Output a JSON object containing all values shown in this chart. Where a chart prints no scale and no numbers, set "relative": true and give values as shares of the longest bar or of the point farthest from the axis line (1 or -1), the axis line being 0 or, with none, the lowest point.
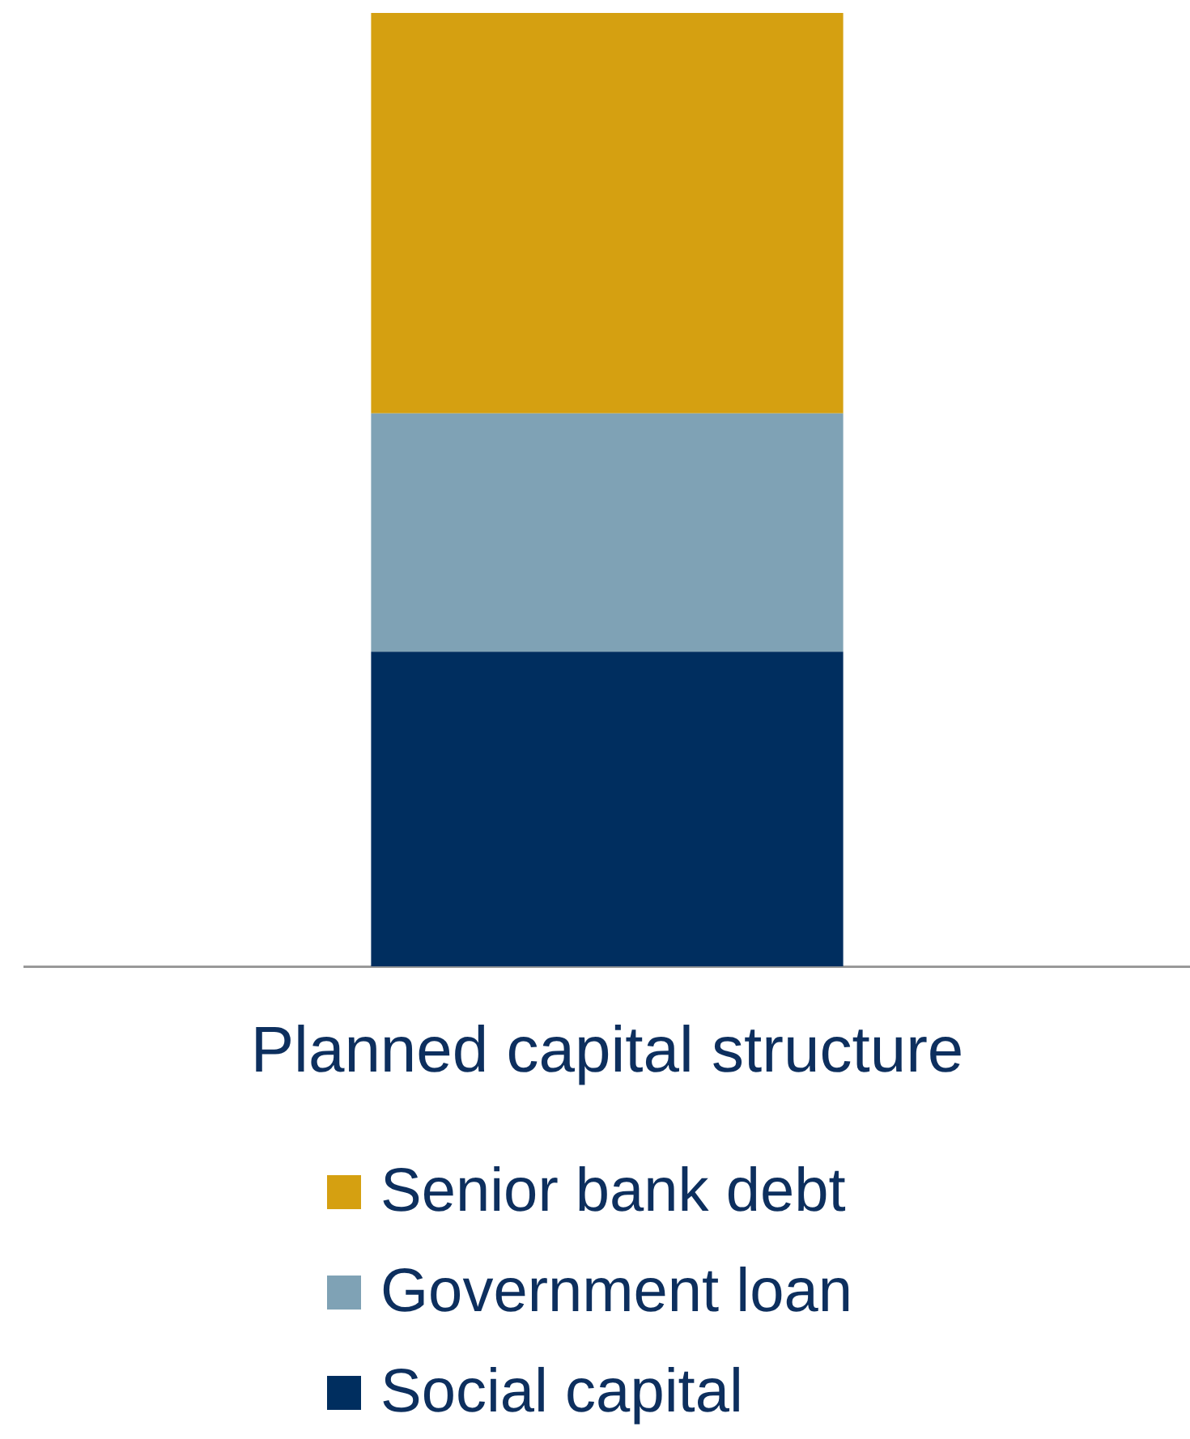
{
  "chart_data": {
    "type": "bar",
    "stacked": true,
    "relative": true,
    "categories": [
      "Planned capital structure"
    ],
    "legend": "bottom",
    "series": [
      {
        "name": "Social capital",
        "color": "#002e5f",
        "values": [
          0.33
        ]
      },
      {
        "name": "Government loan",
        "color": "#7fa2b5",
        "values": [
          0.25
        ]
      },
      {
        "name": "Senior bank debt",
        "color": "#d5a011",
        "values": [
          0.42
        ]
      }
    ]
  }
}
